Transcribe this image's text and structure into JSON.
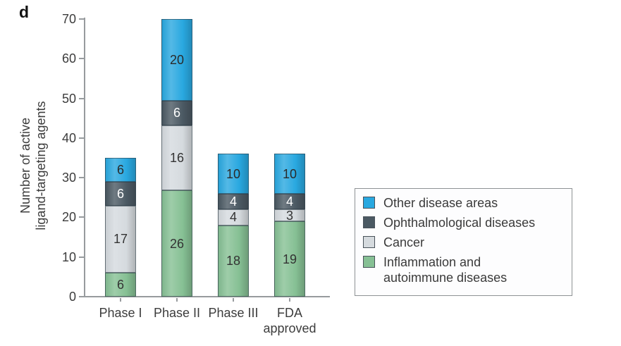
{
  "panel_label": "d",
  "chart_data": {
    "type": "bar",
    "stacked": true,
    "title": "",
    "ylabel": "Number of active ligand-targeting agents",
    "ylabel_lines": [
      "Number of active",
      "ligand-targeting agents"
    ],
    "categories": [
      "Phase I",
      "Phase II",
      "Phase III",
      "FDA approved"
    ],
    "category_label_lines": [
      [
        "Phase I"
      ],
      [
        "Phase II"
      ],
      [
        "Phase III"
      ],
      [
        "FDA",
        "approved"
      ]
    ],
    "ylim": [
      0,
      70
    ],
    "yticks": [
      0,
      10,
      20,
      30,
      40,
      50,
      60,
      70
    ],
    "grid": false,
    "legend_position": "right",
    "series": [
      {
        "name": "Inflammation and autoimmune diseases",
        "color": "#86c094",
        "label_color": "#333333",
        "values": [
          6,
          26,
          18,
          19
        ]
      },
      {
        "name": "Cancer",
        "color": "#d5dade",
        "label_color": "#333333",
        "values": [
          17,
          16,
          4,
          3
        ]
      },
      {
        "name": "Ophthalmological diseases",
        "color": "#4b5963",
        "label_color": "#ffffff",
        "values": [
          6,
          6,
          4,
          4
        ]
      },
      {
        "name": "Other disease areas",
        "color": "#29a8e0",
        "label_color": "#2a2a2a",
        "values": [
          6,
          20,
          10,
          10
        ]
      }
    ],
    "bar_top_values": [
      35,
      70,
      36,
      36
    ],
    "legend": [
      {
        "label": "Other disease areas",
        "label_lines": [
          "Other disease areas"
        ],
        "color": "#29a8e0"
      },
      {
        "label": "Ophthalmological diseases",
        "label_lines": [
          "Ophthalmological diseases"
        ],
        "color": "#4b5963"
      },
      {
        "label": "Cancer",
        "label_lines": [
          "Cancer"
        ],
        "color": "#d5dade"
      },
      {
        "label": "Inflammation and autoimmune diseases",
        "label_lines": [
          "Inflammation and",
          "autoimmune diseases"
        ],
        "color": "#86c094"
      }
    ]
  }
}
